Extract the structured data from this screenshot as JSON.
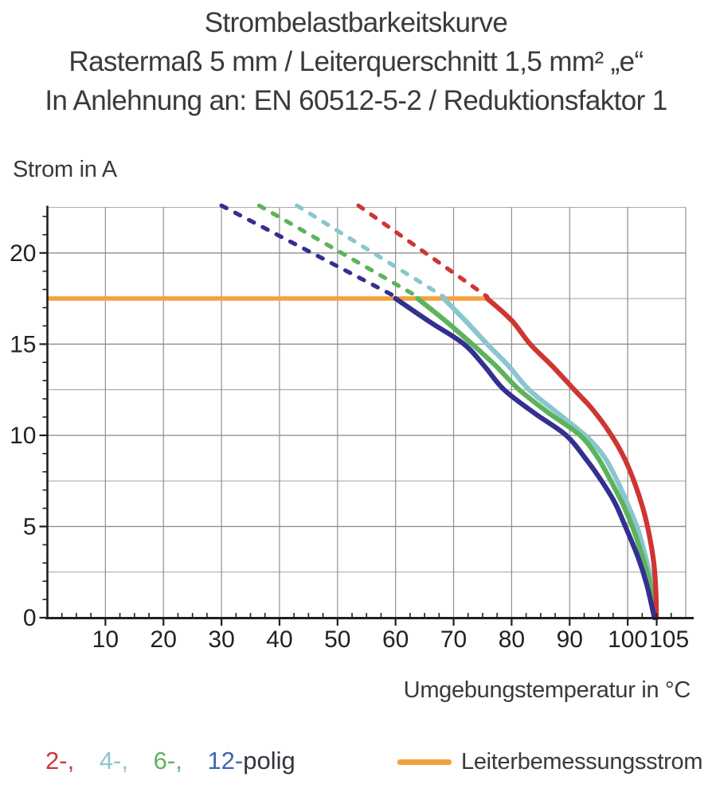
{
  "title": {
    "line1": "Strombelastbarkeitskurve",
    "line2": "Rastermaß 5 mm / Leiterquerschnitt 1,5 mm² „e“",
    "line3": "In Anlehnung an: EN 60512-5-2 / Reduktionsfaktor 1"
  },
  "legend": {
    "poles": [
      {
        "label": "2-,",
        "color": "#cf3531"
      },
      {
        "label": "4-,",
        "color": "#8ac6cf"
      },
      {
        "label": "6-,",
        "color": "#5cb35c"
      },
      {
        "label": "12-",
        "color": "#3e66b0"
      }
    ],
    "poles_suffix": "polig",
    "poles_suffix_color": "#33333d",
    "rated": {
      "label": "Leiterbemessungsstrom",
      "color": "#f5a03d"
    }
  },
  "chart_data": {
    "type": "line",
    "title": "Strombelastbarkeitskurve",
    "xlabel": "Umgebungstemperatur in °C",
    "ylabel": "Strom in A",
    "grid": true,
    "axes": {
      "x": {
        "label": "Umgebungstemperatur in °C",
        "min": 0,
        "max": 110,
        "gridline_step": 10,
        "minor_tick_step": 2.5,
        "tick_labels": [
          10,
          20,
          30,
          40,
          50,
          60,
          70,
          80,
          90,
          100,
          105
        ]
      },
      "y": {
        "label": "Strom in A",
        "min": 0,
        "max": 22.5,
        "gridline_step": 2.5,
        "minor_tick_step": 1,
        "tick_labels": [
          0,
          5,
          10,
          15,
          20
        ]
      }
    },
    "rated_current": {
      "label": "Leiterbemessungsstrom",
      "value_a": 17.5,
      "x_start": 0,
      "x_end": 75.8,
      "color": "#f5a03d"
    },
    "series": [
      {
        "name": "2-polig",
        "color": "#cf3531",
        "dashed": [
          [
            53.6,
            22.6
          ],
          [
            75.8,
            17.6
          ]
        ],
        "solid": [
          [
            75.8,
            17.5
          ],
          [
            80,
            16.3
          ],
          [
            83.2,
            15
          ],
          [
            87,
            13.8
          ],
          [
            90.8,
            12.5
          ],
          [
            94,
            11.4
          ],
          [
            97.2,
            10
          ],
          [
            99.5,
            8.7
          ],
          [
            101.3,
            7.3
          ],
          [
            102.8,
            5.8
          ],
          [
            103.8,
            4.4
          ],
          [
            104.5,
            3.0
          ],
          [
            104.85,
            1.5
          ],
          [
            104.95,
            0
          ]
        ]
      },
      {
        "name": "4-polig",
        "color": "#8ac6cf",
        "dashed": [
          [
            43.0,
            22.6
          ],
          [
            68.3,
            17.6
          ]
        ],
        "solid": [
          [
            68.3,
            17.5
          ],
          [
            72,
            16.3
          ],
          [
            75.8,
            15
          ],
          [
            79.5,
            13.8
          ],
          [
            83,
            12.5
          ],
          [
            88,
            11.2
          ],
          [
            93,
            9.9
          ],
          [
            96,
            8.8
          ],
          [
            98.2,
            7.5
          ],
          [
            100.3,
            6.0
          ],
          [
            101.8,
            4.8
          ],
          [
            103.2,
            3.2
          ],
          [
            104.2,
            1.8
          ],
          [
            104.75,
            0
          ]
        ]
      },
      {
        "name": "6-polig",
        "color": "#5cb35c",
        "dashed": [
          [
            36.5,
            22.6
          ],
          [
            63.8,
            17.6
          ]
        ],
        "solid": [
          [
            63.8,
            17.5
          ],
          [
            68.5,
            16.3
          ],
          [
            73.2,
            15
          ],
          [
            77.3,
            13.8
          ],
          [
            81.3,
            12.5
          ],
          [
            86.5,
            11.2
          ],
          [
            91.8,
            10
          ],
          [
            94.8,
            8.8
          ],
          [
            97.1,
            7.5
          ],
          [
            99.2,
            6.2
          ],
          [
            100.8,
            5.0
          ],
          [
            102.6,
            3.3
          ],
          [
            103.9,
            1.8
          ],
          [
            104.7,
            0
          ]
        ]
      },
      {
        "name": "12-polig",
        "color": "#33308f",
        "dashed": [
          [
            30.0,
            22.6
          ],
          [
            60.0,
            17.6
          ]
        ],
        "solid": [
          [
            60,
            17.5
          ],
          [
            66,
            16.2
          ],
          [
            71.8,
            15
          ],
          [
            75.3,
            13.8
          ],
          [
            78.7,
            12.5
          ],
          [
            84,
            11.2
          ],
          [
            89.4,
            10
          ],
          [
            92.8,
            8.7
          ],
          [
            95.5,
            7.5
          ],
          [
            97.8,
            6.3
          ],
          [
            99.6,
            5.0
          ],
          [
            101.8,
            3.3
          ],
          [
            103.3,
            1.8
          ],
          [
            104.6,
            0
          ]
        ]
      }
    ],
    "z_order": [
      1,
      2,
      0,
      3
    ],
    "style": {
      "grid_major_color": "#8f8f8f",
      "grid_minor_color": "#ababab",
      "axis_color": "#1f1f1f",
      "tick_label_color": "#222222"
    }
  }
}
